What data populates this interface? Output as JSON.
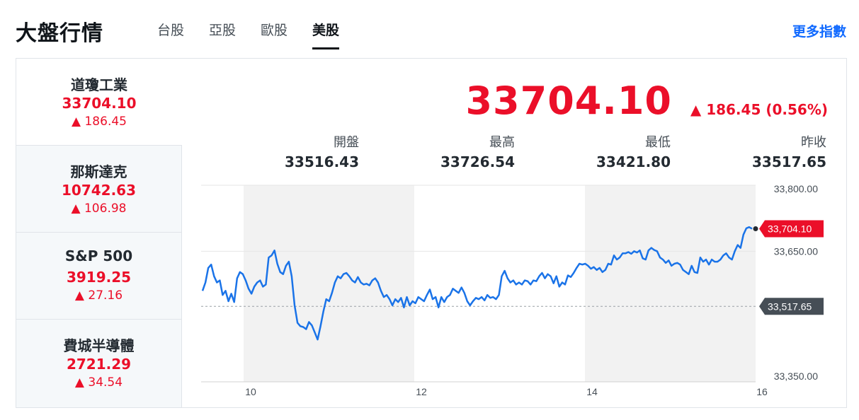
{
  "header": {
    "title": "大盤行情",
    "tabs": [
      {
        "label": "台股",
        "active": false
      },
      {
        "label": "亞股",
        "active": false
      },
      {
        "label": "歐股",
        "active": false
      },
      {
        "label": "美股",
        "active": true
      }
    ],
    "more_link": "更多指數"
  },
  "indices": [
    {
      "name": "道瓊工業",
      "price": "33704.10",
      "change": "▲ 186.45",
      "selected": true
    },
    {
      "name": "那斯達克",
      "price": "10742.63",
      "change": "▲ 106.98",
      "selected": false
    },
    {
      "name": "S&P 500",
      "price": "3919.25",
      "change": "▲ 27.16",
      "selected": false
    },
    {
      "name": "費城半導體",
      "price": "2721.29",
      "change": "▲ 34.54",
      "selected": false
    }
  ],
  "quote": {
    "price": "33704.10",
    "change": "▲ 186.45 (0.56%)",
    "stats": [
      {
        "label": "開盤",
        "value": "33516.43"
      },
      {
        "label": "最高",
        "value": "33726.54"
      },
      {
        "label": "最低",
        "value": "33421.80"
      },
      {
        "label": "昨收",
        "value": "33517.65"
      }
    ]
  },
  "colors": {
    "up": "#eb0f29",
    "line": "#1a73e8",
    "link": "#0f69ff",
    "prev_close_tag": "#464e56",
    "shade": "#f2f2f2"
  },
  "chart_data": {
    "type": "line",
    "x_ticks": [
      "10",
      "12",
      "14",
      "16"
    ],
    "y_ticks": [
      "33,800.00",
      "33,650.00",
      "33,350.00"
    ],
    "ylim": [
      33350,
      33800
    ],
    "last_value_label": "33,704.10",
    "prev_close_label": "33,517.65",
    "prev_close": 33517.65,
    "last_value": 33704.1,
    "series": [
      {
        "values": [
          33555,
          33575,
          33610,
          33618,
          33590,
          33575,
          33580,
          33545,
          33555,
          33530,
          33548,
          33528,
          33585,
          33600,
          33595,
          33580,
          33560,
          33548,
          33565,
          33575,
          33580,
          33565,
          33570,
          33635,
          33640,
          33652,
          33620,
          33600,
          33595,
          33615,
          33625,
          33590,
          33520,
          33478,
          33470,
          33468,
          33463,
          33480,
          33472,
          33455,
          33438,
          33470,
          33505,
          33535,
          33530,
          33550,
          33575,
          33590,
          33585,
          33595,
          33598,
          33590,
          33580,
          33575,
          33588,
          33575,
          33570,
          33572,
          33568,
          33580,
          33585,
          33575,
          33555,
          33540,
          33545,
          33535,
          33520,
          33535,
          33528,
          33538,
          33515,
          33540,
          33520,
          33530,
          33525,
          33540,
          33535,
          33530,
          33545,
          33558,
          33535,
          33540,
          33515,
          33540,
          33528,
          33540,
          33545,
          33560,
          33555,
          33550,
          33563,
          33550,
          33530,
          33520,
          33530,
          33538,
          33535,
          33540,
          33532,
          33545,
          33538,
          33540,
          33535,
          33545,
          33590,
          33603,
          33585,
          33575,
          33580,
          33570,
          33575,
          33570,
          33580,
          33578,
          33570,
          33580,
          33578,
          33590,
          33598,
          33585,
          33595,
          33590,
          33573,
          33590,
          33565,
          33575,
          33570,
          33592,
          33588,
          33598,
          33610,
          33620,
          33618,
          33620,
          33615,
          33608,
          33612,
          33605,
          33610,
          33600,
          33605,
          33620,
          33618,
          33640,
          33630,
          33635,
          33645,
          33645,
          33648,
          33644,
          33650,
          33647,
          33652,
          33633,
          33630,
          33652,
          33658,
          33653,
          33650,
          33635,
          33630,
          33622,
          33628,
          33615,
          33620,
          33622,
          33618,
          33605,
          33600,
          33595,
          33615,
          33600,
          33598,
          33635,
          33625,
          33630,
          33618,
          33630,
          33625,
          33625,
          33630,
          33640,
          33645,
          33635,
          33630,
          33650,
          33665,
          33658,
          33690,
          33705,
          33708,
          33704
        ]
      }
    ]
  }
}
